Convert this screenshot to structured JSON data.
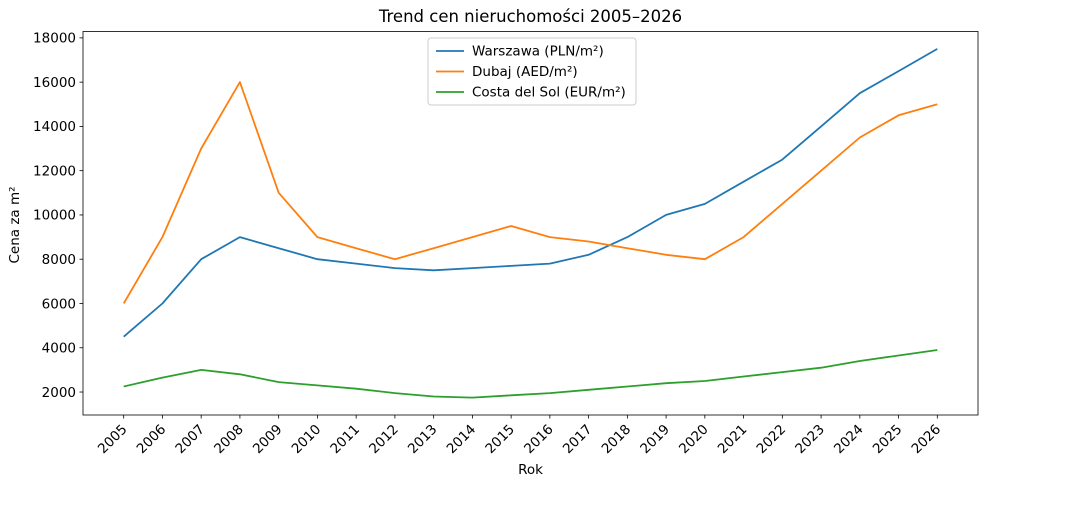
{
  "chart_data": {
    "type": "line",
    "title": "Trend cen nieruchomości 2005–2026",
    "xlabel": "Rok",
    "ylabel": "Cena za m²",
    "x": [
      2005,
      2006,
      2007,
      2008,
      2009,
      2010,
      2011,
      2012,
      2013,
      2014,
      2015,
      2016,
      2017,
      2018,
      2019,
      2020,
      2021,
      2022,
      2023,
      2024,
      2025,
      2026
    ],
    "series": [
      {
        "name": "Warszawa (PLN/m²)",
        "color": "#1f77b4",
        "values": [
          4500,
          6000,
          8000,
          9000,
          8500,
          8000,
          7800,
          7600,
          7500,
          7600,
          7700,
          7800,
          8200,
          9000,
          10000,
          10500,
          11500,
          12500,
          14000,
          15500,
          16500,
          17500
        ]
      },
      {
        "name": "Dubaj (AED/m²)",
        "color": "#ff7f0e",
        "values": [
          6000,
          9000,
          13000,
          16000,
          11000,
          9000,
          8500,
          8000,
          8500,
          9000,
          9500,
          9000,
          8800,
          8500,
          8200,
          8000,
          9000,
          10500,
          12000,
          13500,
          14500,
          15000
        ]
      },
      {
        "name": "Costa del Sol (EUR/m²)",
        "color": "#2ca02c",
        "values": [
          2250,
          2650,
          3000,
          2800,
          2450,
          2300,
          2150,
          1950,
          1800,
          1750,
          1850,
          1950,
          2100,
          2250,
          2400,
          2500,
          2700,
          2900,
          3100,
          3400,
          3650,
          3900
        ]
      }
    ],
    "yticks": [
      2000,
      4000,
      6000,
      8000,
      10000,
      12000,
      14000,
      16000,
      18000
    ],
    "ylim": [
      962,
      18288
    ],
    "xlim": [
      2003.95,
      2027.05
    ],
    "grid": false,
    "legend_position": "upper center",
    "background": "#ffffff"
  }
}
